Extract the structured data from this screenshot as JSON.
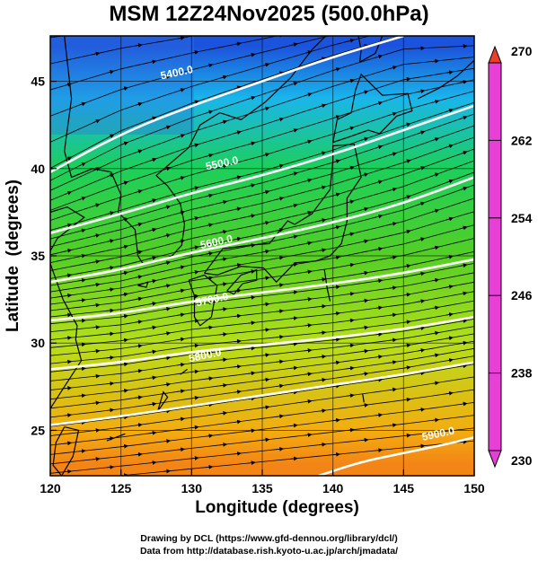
{
  "title": "MSM 12Z24Nov2025 (500.0hPa)",
  "xlabel": "Longitude (degrees)",
  "ylabel": "Latitude  (degrees)",
  "credits": [
    "Drawing by DCL (https://www.gfd-dennou.org/library/dcl/)",
    "Data from http://database.rish.kyoto-u.ac.jp/arch/jmadata/"
  ],
  "chart_data": {
    "type": "heatmap",
    "x_range": [
      120,
      150
    ],
    "y_range": [
      22.4,
      47.6
    ],
    "x_ticks": [
      120,
      125,
      130,
      135,
      140,
      145,
      150
    ],
    "y_ticks": [
      25,
      30,
      35,
      40,
      45
    ],
    "colorbar": {
      "min": 230,
      "max": 270,
      "tick_values": [
        230,
        238,
        246,
        254,
        262,
        270
      ],
      "tick_labels": [
        "230",
        "238",
        "246",
        "254",
        "262",
        "270"
      ]
    },
    "temperature_field": {
      "units": "K",
      "approx_by_latitude": [
        {
          "lat": 47,
          "value": 240
        },
        {
          "lat": 44,
          "value": 245
        },
        {
          "lat": 40,
          "value": 252
        },
        {
          "lat": 35,
          "value": 256
        },
        {
          "lat": 30,
          "value": 260
        },
        {
          "lat": 25,
          "value": 265
        },
        {
          "lat": 23,
          "value": 267
        }
      ]
    },
    "height_contours": [
      {
        "label": "5400.0",
        "points": [
          [
            120,
            39.8
          ],
          [
            125,
            42.0
          ],
          [
            130,
            43.6
          ],
          [
            135,
            45.0
          ],
          [
            140,
            46.4
          ],
          [
            145,
            47.6
          ]
        ]
      },
      {
        "label": "5500.0",
        "points": [
          [
            120,
            36.3
          ],
          [
            125,
            37.4
          ],
          [
            130,
            38.6
          ],
          [
            135,
            39.6
          ],
          [
            140,
            40.8
          ],
          [
            145,
            42.2
          ],
          [
            150,
            43.6
          ]
        ]
      },
      {
        "label": "5600.0",
        "points": [
          [
            120,
            33.5
          ],
          [
            125,
            34.2
          ],
          [
            130,
            35.2
          ],
          [
            135,
            36.0
          ],
          [
            140,
            36.9
          ],
          [
            145,
            38.0
          ],
          [
            150,
            39.5
          ]
        ]
      },
      {
        "label": "5700.0",
        "points": [
          [
            120,
            31.3
          ],
          [
            125,
            31.7
          ],
          [
            130,
            32.4
          ],
          [
            135,
            32.9
          ],
          [
            140,
            33.4
          ],
          [
            145,
            34.0
          ],
          [
            150,
            34.8
          ]
        ]
      },
      {
        "label": "5800.0",
        "points": [
          [
            120,
            28.5
          ],
          [
            125,
            28.9
          ],
          [
            130,
            29.5
          ],
          [
            135,
            29.9
          ],
          [
            140,
            30.3
          ],
          [
            145,
            30.8
          ],
          [
            150,
            31.5
          ]
        ]
      },
      {
        "label": "5900.0",
        "points": [
          [
            120,
            25.3
          ],
          [
            125,
            25.8
          ],
          [
            130,
            26.4
          ],
          [
            135,
            27.0
          ],
          [
            140,
            27.6
          ],
          [
            145,
            28.2
          ],
          [
            150,
            28.9
          ]
        ]
      },
      {
        "label": "5900.0",
        "points": [
          [
            139,
            22.4
          ],
          [
            142,
            23.2
          ],
          [
            145,
            23.7
          ],
          [
            148,
            24.2
          ],
          [
            150,
            24.6
          ]
        ]
      }
    ],
    "height_contour_labels": [
      {
        "text": "5400.0",
        "lon": 129.0,
        "lat": 45.3
      },
      {
        "text": "5500.0",
        "lon": 132.2,
        "lat": 40.1
      },
      {
        "text": "5600.0",
        "lon": 131.8,
        "lat": 35.6
      },
      {
        "text": "5700.0",
        "lon": 131.5,
        "lat": 32.3
      },
      {
        "text": "5800.0",
        "lon": 131.0,
        "lat": 29.1
      },
      {
        "text": "5900.0",
        "lon": 147.5,
        "lat": 24.6
      }
    ]
  }
}
